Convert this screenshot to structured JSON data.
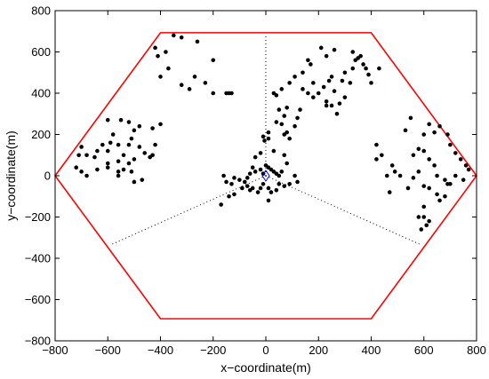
{
  "chart_data": {
    "type": "scatter",
    "xlabel": "x−coordinate(m)",
    "ylabel": "y−coordinate(m)",
    "xlim": [
      -800,
      800
    ],
    "ylim": [
      -800,
      800
    ],
    "xticks": [
      -800,
      -600,
      -400,
      -200,
      0,
      200,
      400,
      600,
      800
    ],
    "yticks": [
      -800,
      -600,
      -400,
      -200,
      0,
      200,
      400,
      600,
      800
    ],
    "xtick_labels": [
      "−800",
      "−600",
      "−400",
      "−200",
      "0",
      "200",
      "400",
      "600",
      "800"
    ],
    "ytick_labels": [
      "−800",
      "−600",
      "−400",
      "−200",
      "0",
      "200",
      "400",
      "600",
      "800"
    ],
    "grid": false,
    "hexagon": {
      "color": "#ff0000",
      "vertices": [
        [
          -800,
          0
        ],
        [
          -400,
          693
        ],
        [
          400,
          693
        ],
        [
          800,
          0
        ],
        [
          400,
          -693
        ],
        [
          -400,
          -693
        ]
      ]
    },
    "sector_lines": {
      "style": "dotted",
      "color": "#000000",
      "segments": [
        [
          [
            0,
            0
          ],
          [
            0,
            680
          ]
        ],
        [
          [
            0,
            0
          ],
          [
            -590,
            -335
          ]
        ],
        [
          [
            0,
            0
          ],
          [
            590,
            -335
          ]
        ]
      ]
    },
    "base_station": {
      "marker": "diamond",
      "color": "#0000ff",
      "x": 0,
      "y": 0
    },
    "points": {
      "color": "#000000",
      "xy": [
        [
          -420,
          620
        ],
        [
          -380,
          600
        ],
        [
          -410,
          580
        ],
        [
          -350,
          680
        ],
        [
          -320,
          670
        ],
        [
          -370,
          520
        ],
        [
          -400,
          480
        ],
        [
          -260,
          650
        ],
        [
          -200,
          560
        ],
        [
          -230,
          450
        ],
        [
          -270,
          480
        ],
        [
          -290,
          420
        ],
        [
          -320,
          440
        ],
        [
          -200,
          400
        ],
        [
          -150,
          400
        ],
        [
          -130,
          400
        ],
        [
          -140,
          400
        ],
        [
          -600,
          270
        ],
        [
          -580,
          200
        ],
        [
          -550,
          270
        ],
        [
          -520,
          260
        ],
        [
          -500,
          220
        ],
        [
          -480,
          240
        ],
        [
          -510,
          180
        ],
        [
          -560,
          150
        ],
        [
          -520,
          150
        ],
        [
          -480,
          140
        ],
        [
          -460,
          110
        ],
        [
          -440,
          90
        ],
        [
          -500,
          80
        ],
        [
          -540,
          100
        ],
        [
          -600,
          120
        ],
        [
          -620,
          150
        ],
        [
          -650,
          90
        ],
        [
          -680,
          100
        ],
        [
          -700,
          140
        ],
        [
          -710,
          100
        ],
        [
          -720,
          40
        ],
        [
          -700,
          20
        ],
        [
          -680,
          0
        ],
        [
          -640,
          30
        ],
        [
          -600,
          40
        ],
        [
          -560,
          20
        ],
        [
          -540,
          30
        ],
        [
          -520,
          60
        ],
        [
          -560,
          70
        ],
        [
          -600,
          60
        ],
        [
          -640,
          120
        ],
        [
          -590,
          160
        ],
        [
          -500,
          -30
        ],
        [
          -470,
          -20
        ],
        [
          -430,
          100
        ],
        [
          -420,
          150
        ],
        [
          -400,
          250
        ],
        [
          -430,
          230
        ],
        [
          -560,
          0
        ],
        [
          -510,
          20
        ],
        [
          -50,
          40
        ],
        [
          -40,
          20
        ],
        [
          -20,
          30
        ],
        [
          -10,
          10
        ],
        [
          0,
          50
        ],
        [
          10,
          40
        ],
        [
          20,
          30
        ],
        [
          30,
          20
        ],
        [
          40,
          10
        ],
        [
          50,
          0
        ],
        [
          60,
          20
        ],
        [
          -60,
          10
        ],
        [
          -70,
          -10
        ],
        [
          -80,
          -30
        ],
        [
          -100,
          -20
        ],
        [
          -120,
          -10
        ],
        [
          -130,
          -40
        ],
        [
          -150,
          -30
        ],
        [
          -90,
          -60
        ],
        [
          -70,
          -50
        ],
        [
          -60,
          -70
        ],
        [
          -50,
          -60
        ],
        [
          -30,
          -80
        ],
        [
          -20,
          -60
        ],
        [
          -10,
          -40
        ],
        [
          10,
          -60
        ],
        [
          20,
          -80
        ],
        [
          40,
          -70
        ],
        [
          50,
          -40
        ],
        [
          70,
          -50
        ],
        [
          90,
          -40
        ],
        [
          80,
          60
        ],
        [
          70,
          100
        ],
        [
          30,
          120
        ],
        [
          -20,
          110
        ],
        [
          -10,
          190
        ],
        [
          10,
          180
        ],
        [
          -5,
          170
        ],
        [
          -40,
          90
        ],
        [
          10,
          -120
        ],
        [
          -170,
          -140
        ],
        [
          -160,
          0
        ],
        [
          -140,
          -100
        ],
        [
          -120,
          -90
        ],
        [
          110,
          0
        ],
        [
          120,
          -30
        ],
        [
          10,
          210
        ],
        [
          40,
          260
        ],
        [
          60,
          250
        ],
        [
          70,
          290
        ],
        [
          80,
          330
        ],
        [
          90,
          180
        ],
        [
          110,
          240
        ],
        [
          120,
          280
        ],
        [
          130,
          320
        ],
        [
          140,
          420
        ],
        [
          160,
          400
        ],
        [
          180,
          380
        ],
        [
          200,
          400
        ],
        [
          220,
          430
        ],
        [
          240,
          460
        ],
        [
          250,
          480
        ],
        [
          260,
          410
        ],
        [
          270,
          300
        ],
        [
          280,
          350
        ],
        [
          300,
          380
        ],
        [
          320,
          450
        ],
        [
          330,
          520
        ],
        [
          340,
          560
        ],
        [
          260,
          610
        ],
        [
          230,
          580
        ],
        [
          210,
          620
        ],
        [
          160,
          560
        ],
        [
          110,
          480
        ],
        [
          90,
          450
        ],
        [
          60,
          420
        ],
        [
          40,
          390
        ],
        [
          30,
          400
        ],
        [
          50,
          320
        ],
        [
          70,
          200
        ],
        [
          140,
          500
        ],
        [
          170,
          540
        ],
        [
          180,
          450
        ],
        [
          230,
          340
        ],
        [
          250,
          340
        ],
        [
          230,
          360
        ],
        [
          350,
          570
        ],
        [
          360,
          580
        ],
        [
          370,
          540
        ],
        [
          380,
          520
        ],
        [
          390,
          490
        ],
        [
          400,
          450
        ],
        [
          430,
          520
        ],
        [
          290,
          460
        ],
        [
          300,
          500
        ],
        [
          330,
          600
        ],
        [
          80,
          210
        ],
        [
          530,
          220
        ],
        [
          550,
          280
        ],
        [
          560,
          100
        ],
        [
          580,
          130
        ],
        [
          600,
          200
        ],
        [
          620,
          250
        ],
        [
          640,
          210
        ],
        [
          660,
          240
        ],
        [
          690,
          200
        ],
        [
          700,
          150
        ],
        [
          720,
          110
        ],
        [
          740,
          80
        ],
        [
          760,
          50
        ],
        [
          720,
          0
        ],
        [
          700,
          -40
        ],
        [
          680,
          -20
        ],
        [
          650,
          0
        ],
        [
          640,
          50
        ],
        [
          620,
          80
        ],
        [
          600,
          120
        ],
        [
          580,
          20
        ],
        [
          560,
          -10
        ],
        [
          540,
          -60
        ],
        [
          510,
          0
        ],
        [
          480,
          50
        ],
        [
          420,
          80
        ],
        [
          420,
          150
        ],
        [
          440,
          100
        ],
        [
          460,
          0
        ],
        [
          470,
          -80
        ],
        [
          490,
          20
        ],
        [
          600,
          -50
        ],
        [
          620,
          -60
        ],
        [
          600,
          -150
        ],
        [
          580,
          -200
        ],
        [
          600,
          -200
        ],
        [
          620,
          -220
        ],
        [
          590,
          -260
        ],
        [
          610,
          -240
        ],
        [
          650,
          -90
        ],
        [
          680,
          -100
        ],
        [
          660,
          -120
        ],
        [
          690,
          -40
        ],
        [
          750,
          -20
        ],
        [
          770,
          30
        ]
      ]
    }
  }
}
